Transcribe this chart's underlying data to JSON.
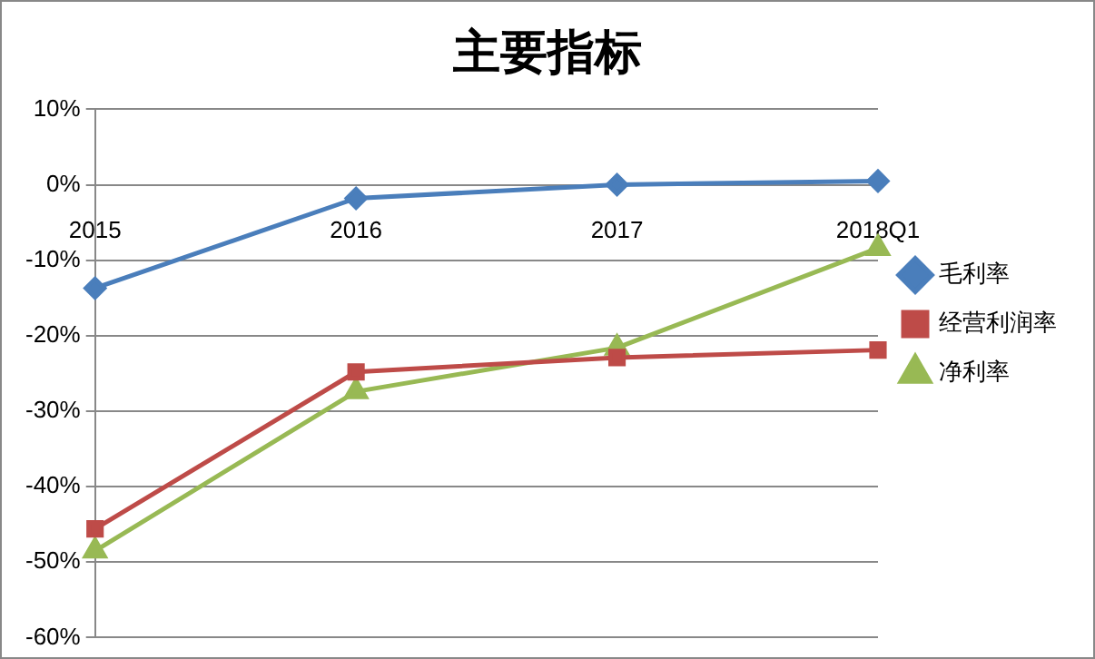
{
  "chart_data": {
    "type": "line",
    "title": "主要指标",
    "categories": [
      "2015",
      "2016",
      "2017",
      "2018Q1"
    ],
    "series": [
      {
        "name": "毛利率",
        "color": "#4a7ebb",
        "marker": "diamond",
        "values": [
          -13.7,
          -1.8,
          0,
          0.5
        ]
      },
      {
        "name": "经营利润率",
        "color": "#be4b48",
        "marker": "square",
        "values": [
          -45.6,
          -24.8,
          -22.9,
          -21.9
        ]
      },
      {
        "name": "净利率",
        "color": "#98b954",
        "marker": "triangle",
        "values": [
          -48.5,
          -27.4,
          -21.6,
          -8.4
        ]
      }
    ],
    "ylim": [
      -60,
      10
    ],
    "yticks": [
      {
        "value": -60,
        "label": "-60%"
      },
      {
        "value": -50,
        "label": "-50%"
      },
      {
        "value": -40,
        "label": "-40%"
      },
      {
        "value": -30,
        "label": "-30%"
      },
      {
        "value": -20,
        "label": "-20%"
      },
      {
        "value": -10,
        "label": "-10%"
      },
      {
        "value": 0,
        "label": "0%"
      },
      {
        "value": 10,
        "label": "10%"
      }
    ],
    "grid": "y",
    "legend": "right",
    "line_style": "solid"
  }
}
